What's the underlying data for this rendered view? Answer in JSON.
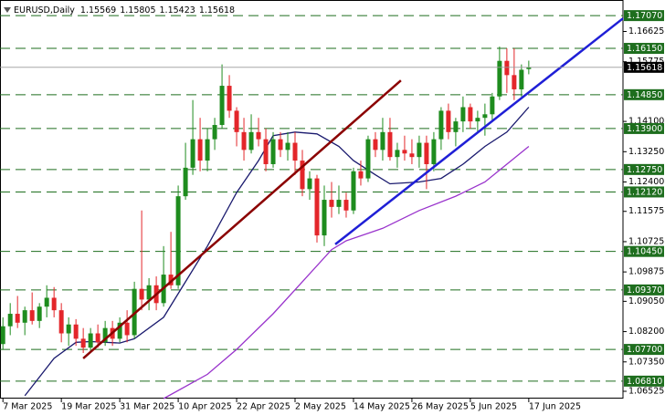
{
  "chart_data": {
    "type": "candlestick",
    "title": "EURUSD,Daily",
    "categories": [
      "7 Mar 2025",
      null,
      null,
      null,
      null,
      null,
      null,
      null,
      "19 Mar 2025",
      null,
      null,
      null,
      null,
      null,
      null,
      null,
      "31 Mar 2025",
      null,
      null,
      null,
      null,
      null,
      null,
      null,
      "10 Apr 2025",
      null,
      null,
      null,
      null,
      null,
      null,
      null,
      "22 Apr 2025",
      null,
      null,
      null,
      null,
      null,
      null,
      null,
      "2 May 2025",
      null,
      null,
      null,
      null,
      null,
      null,
      null,
      "14 May 2025",
      null,
      null,
      null,
      null,
      null,
      null,
      null,
      "26 May 2025",
      null,
      null,
      null,
      null,
      null,
      null,
      null,
      "5 Jun 2025",
      null,
      null,
      null,
      null,
      null,
      null,
      null,
      "17 Jun 2025"
    ],
    "ohlc": [
      [
        1.0785,
        1.086,
        1.077,
        1.0835
      ],
      [
        1.0835,
        1.09,
        1.081,
        1.087
      ],
      [
        1.087,
        1.092,
        1.083,
        1.0845
      ],
      [
        1.0845,
        1.089,
        1.081,
        1.088
      ],
      [
        1.088,
        1.093,
        1.084,
        1.085
      ],
      [
        1.085,
        1.09,
        1.083,
        1.089
      ],
      [
        1.089,
        1.095,
        1.086,
        1.0915
      ],
      [
        1.0915,
        1.0945,
        1.086,
        1.088
      ],
      [
        1.088,
        1.09,
        1.079,
        1.0815
      ],
      [
        1.0815,
        1.086,
        1.078,
        1.084
      ],
      [
        1.084,
        1.0855,
        1.078,
        1.08
      ],
      [
        1.08,
        1.083,
        1.076,
        1.0775
      ],
      [
        1.0775,
        1.083,
        1.076,
        1.0815
      ],
      [
        1.0815,
        1.084,
        1.0775,
        1.079
      ],
      [
        1.079,
        1.085,
        1.078,
        1.083
      ],
      [
        1.083,
        1.085,
        1.078,
        1.08
      ],
      [
        1.08,
        1.086,
        1.079,
        1.0845
      ],
      [
        1.0845,
        1.088,
        1.079,
        1.081
      ],
      [
        1.081,
        1.096,
        1.08,
        1.094
      ],
      [
        1.094,
        1.116,
        1.088,
        1.091
      ],
      [
        1.091,
        1.097,
        1.088,
        1.095
      ],
      [
        1.095,
        1.0975,
        1.088,
        1.09
      ],
      [
        1.09,
        1.106,
        1.089,
        1.098
      ],
      [
        1.098,
        1.11,
        1.094,
        1.095
      ],
      [
        1.095,
        1.123,
        1.094,
        1.12
      ],
      [
        1.12,
        1.135,
        1.119,
        1.128
      ],
      [
        1.128,
        1.147,
        1.126,
        1.136
      ],
      [
        1.136,
        1.142,
        1.127,
        1.13
      ],
      [
        1.13,
        1.139,
        1.127,
        1.136
      ],
      [
        1.136,
        1.142,
        1.133,
        1.14
      ],
      [
        1.14,
        1.157,
        1.139,
        1.151
      ],
      [
        1.151,
        1.154,
        1.142,
        1.144
      ],
      [
        1.144,
        1.145,
        1.134,
        1.138
      ],
      [
        1.138,
        1.142,
        1.13,
        1.133
      ],
      [
        1.133,
        1.143,
        1.132,
        1.138
      ],
      [
        1.138,
        1.142,
        1.134,
        1.136
      ],
      [
        1.136,
        1.139,
        1.127,
        1.129
      ],
      [
        1.129,
        1.138,
        1.128,
        1.136
      ],
      [
        1.136,
        1.138,
        1.131,
        1.133
      ],
      [
        1.133,
        1.138,
        1.13,
        1.135
      ],
      [
        1.135,
        1.138,
        1.126,
        1.13
      ],
      [
        1.13,
        1.133,
        1.12,
        1.122
      ],
      [
        1.122,
        1.127,
        1.119,
        1.125
      ],
      [
        1.125,
        1.126,
        1.107,
        1.109
      ],
      [
        1.109,
        1.123,
        1.106,
        1.119
      ],
      [
        1.119,
        1.124,
        1.114,
        1.117
      ],
      [
        1.117,
        1.123,
        1.115,
        1.119
      ],
      [
        1.119,
        1.121,
        1.114,
        1.116
      ],
      [
        1.116,
        1.128,
        1.115,
        1.127
      ],
      [
        1.127,
        1.13,
        1.123,
        1.125
      ],
      [
        1.125,
        1.137,
        1.124,
        1.136
      ],
      [
        1.136,
        1.138,
        1.131,
        1.133
      ],
      [
        1.133,
        1.142,
        1.13,
        1.138
      ],
      [
        1.138,
        1.142,
        1.13,
        1.131
      ],
      [
        1.131,
        1.135,
        1.128,
        1.133
      ],
      [
        1.133,
        1.137,
        1.13,
        1.132
      ],
      [
        1.132,
        1.136,
        1.129,
        1.131
      ],
      [
        1.131,
        1.137,
        1.128,
        1.135
      ],
      [
        1.135,
        1.137,
        1.122,
        1.129
      ],
      [
        1.129,
        1.138,
        1.127,
        1.136
      ],
      [
        1.136,
        1.145,
        1.133,
        1.144
      ],
      [
        1.144,
        1.146,
        1.136,
        1.138
      ],
      [
        1.138,
        1.142,
        1.134,
        1.141
      ],
      [
        1.141,
        1.148,
        1.138,
        1.145
      ],
      [
        1.145,
        1.146,
        1.139,
        1.141
      ],
      [
        1.141,
        1.144,
        1.138,
        1.142
      ],
      [
        1.142,
        1.146,
        1.137,
        1.143
      ],
      [
        1.143,
        1.149,
        1.141,
        1.148
      ],
      [
        1.148,
        1.162,
        1.147,
        1.158
      ],
      [
        1.158,
        1.1615,
        1.149,
        1.154
      ],
      [
        1.154,
        1.1615,
        1.147,
        1.15
      ],
      [
        1.15,
        1.157,
        1.148,
        1.1555
      ],
      [
        1.15569,
        1.15805,
        1.15423,
        1.15618
      ]
    ],
    "bull_color": "#1e8c1e",
    "bear_color": "#e3262a",
    "xlim": [
      -0.4,
      84.9
    ],
    "ylim": [
      1.0632,
      1.1738
    ],
    "yticks": [
      1.06525,
      {
        "value": 1.0735,
        "label": "1.07350"
      },
      {
        "value": 1.082,
        "label": "1.08200"
      },
      {
        "value": 1.0905,
        "label": "1.09050"
      },
      1.09875,
      1.10725,
      1.11575,
      {
        "value": 1.124,
        "label": "1.12400"
      },
      {
        "value": 1.1325,
        "label": "1.13250"
      },
      {
        "value": 1.141,
        "label": "1.14100"
      },
      1.15775,
      1.16625
    ],
    "levels": [
      {
        "value": 1.1707,
        "label": "1.17070"
      },
      {
        "value": 1.1615,
        "label": "1.16150"
      },
      {
        "value": 1.1485,
        "label": "1.14850"
      },
      {
        "value": 1.139,
        "label": "1.13900"
      },
      {
        "value": 1.1275,
        "label": "1.12750"
      },
      {
        "value": 1.1212,
        "label": "1.12120"
      },
      {
        "value": 1.1045,
        "label": "1.10450"
      },
      {
        "value": 1.0937,
        "label": "1.09370"
      },
      {
        "value": 1.077,
        "label": "1.07700"
      },
      {
        "value": 1.0681,
        "label": "1.06810"
      }
    ],
    "level_color": "#1e6e1e",
    "moving_averages": [
      {
        "color": "#1a1a6e",
        "x": [
          3,
          7,
          10,
          12,
          16,
          18,
          22,
          25,
          28,
          32,
          35,
          37,
          40,
          43,
          46,
          48,
          51,
          53,
          57,
          60,
          63,
          66,
          69,
          72
        ],
        "values": [
          1.064,
          1.0745,
          1.079,
          1.0792,
          1.0788,
          1.08,
          1.086,
          1.096,
          1.106,
          1.121,
          1.13,
          1.137,
          1.138,
          1.1375,
          1.134,
          1.13,
          1.126,
          1.1235,
          1.124,
          1.125,
          1.129,
          1.134,
          1.138,
          1.145
        ]
      },
      {
        "color": "#9933cc",
        "x": [
          22,
          28,
          32,
          37,
          41,
          45,
          47,
          52,
          57,
          62,
          66,
          69,
          72
        ],
        "values": [
          1.0632,
          1.07,
          1.077,
          1.087,
          1.096,
          1.105,
          1.1075,
          1.111,
          1.116,
          1.12,
          1.124,
          1.129,
          1.134
        ]
      }
    ],
    "trendlines": [
      {
        "color": "#8b0000",
        "x": [
          11,
          54.5
        ],
        "values": [
          1.0745,
          1.1525
        ]
      },
      {
        "color": "#1f1fd6",
        "x": [
          45.5,
          84.9
        ],
        "values": [
          1.1065,
          1.1699
        ]
      }
    ]
  }
}
